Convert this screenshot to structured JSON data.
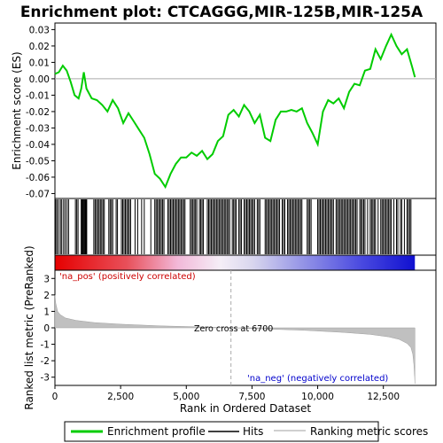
{
  "chart_data": {
    "type": "line",
    "title": "Enrichment plot: CTCAGGG,MIR-125B,MIR-125A",
    "top_panel": {
      "ylabel": "Enrichment score (ES)",
      "ylim": [
        -0.073,
        0.034
      ],
      "yticks": [
        -0.07,
        -0.06,
        -0.05,
        -0.04,
        -0.03,
        -0.02,
        -0.01,
        0.0,
        0.01,
        0.02,
        0.03
      ],
      "ytick_labels": [
        "-0.07",
        "-0.06",
        "-0.05",
        "-0.04",
        "-0.03",
        "-0.02",
        "-0.01",
        "0.00",
        "0.01",
        "0.02",
        "0.03"
      ],
      "series": [
        {
          "name": "Enrichment profile",
          "color": "#00cc00",
          "x": [
            0,
            150,
            300,
            450,
            600,
            750,
            900,
            1000,
            1100,
            1200,
            1400,
            1600,
            1800,
            2000,
            2200,
            2400,
            2600,
            2800,
            3000,
            3200,
            3400,
            3600,
            3800,
            4000,
            4200,
            4400,
            4600,
            4800,
            5000,
            5200,
            5400,
            5600,
            5800,
            6000,
            6200,
            6400,
            6600,
            6800,
            7000,
            7200,
            7400,
            7600,
            7800,
            8000,
            8200,
            8400,
            8600,
            8800,
            9000,
            9200,
            9400,
            9600,
            9800,
            10000,
            10200,
            10400,
            10600,
            10800,
            11000,
            11200,
            11400,
            11600,
            11800,
            12000,
            12200,
            12400,
            12600,
            12800,
            13000,
            13200,
            13400,
            13600,
            13700
          ],
          "y": [
            0.003,
            0.004,
            0.008,
            0.005,
            -0.002,
            -0.01,
            -0.012,
            -0.006,
            0.004,
            -0.006,
            -0.012,
            -0.013,
            -0.016,
            -0.02,
            -0.013,
            -0.018,
            -0.027,
            -0.021,
            -0.026,
            -0.031,
            -0.036,
            -0.046,
            -0.058,
            -0.061,
            -0.066,
            -0.058,
            -0.052,
            -0.048,
            -0.048,
            -0.045,
            -0.047,
            -0.044,
            -0.049,
            -0.046,
            -0.038,
            -0.035,
            -0.022,
            -0.019,
            -0.023,
            -0.016,
            -0.02,
            -0.027,
            -0.022,
            -0.036,
            -0.038,
            -0.025,
            -0.02,
            -0.02,
            -0.019,
            -0.02,
            -0.018,
            -0.027,
            -0.033,
            -0.04,
            -0.02,
            -0.013,
            -0.015,
            -0.012,
            -0.018,
            -0.008,
            -0.003,
            -0.004,
            0.005,
            0.006,
            0.018,
            0.012,
            0.02,
            0.027,
            0.02,
            0.015,
            0.018,
            0.007,
            0.001
          ]
        }
      ]
    },
    "hits": {
      "name": "Hits",
      "positions": [
        30,
        80,
        140,
        210,
        260,
        330,
        390,
        460,
        520,
        780,
        830,
        880,
        1000,
        1030,
        1060,
        1090,
        1120,
        1150,
        1180,
        1210,
        1480,
        1530,
        1580,
        1630,
        1680,
        1730,
        1780,
        1830,
        1880,
        2050,
        2100,
        2150,
        2200,
        2330,
        2380,
        2530,
        2580,
        2630,
        2680,
        2730,
        2780,
        2830,
        2880,
        3050,
        3150,
        3300,
        3400,
        3650,
        3800,
        3850,
        3900,
        3950,
        4000,
        4050,
        4100,
        4150,
        4300,
        4350,
        4400,
        4450,
        4500,
        4550,
        4600,
        4650,
        4700,
        4750,
        4800,
        4850,
        4900,
        4950,
        5150,
        5200,
        5250,
        5300,
        5350,
        5400,
        5500,
        5550,
        5600,
        5650,
        5800,
        5850,
        5900,
        5950,
        6000,
        6050,
        6100,
        6150,
        6200,
        6250,
        6300,
        6350,
        6400,
        6450,
        6500,
        6550,
        6600,
        6650,
        6750,
        6800,
        6850,
        6900,
        7000,
        7050,
        7100,
        7200,
        7250,
        7300,
        7350,
        7400,
        7450,
        7500,
        7550,
        7600,
        7700,
        7750,
        7800,
        8000,
        8050,
        8100,
        8150,
        8200,
        8250,
        8300,
        8350,
        8400,
        8450,
        8500,
        8550,
        8650,
        8700,
        8750,
        8850,
        8900,
        8950,
        9000,
        9050,
        9100,
        9150,
        9200,
        9250,
        9300,
        9350,
        9400,
        9600,
        9650,
        9700,
        9750,
        10000,
        10050,
        10100,
        10150,
        10200,
        10250,
        10300,
        10350,
        10400,
        10450,
        10500,
        10550,
        10600,
        10700,
        10750,
        10800,
        10850,
        10900,
        10950,
        11000,
        11050,
        11100,
        11150,
        11200,
        11250,
        11300,
        11350,
        11400,
        11450,
        11500,
        11600,
        11650,
        11700,
        11750,
        11800,
        11900,
        12000,
        12050,
        12100,
        12150,
        12200,
        12300,
        12400,
        12450,
        12500,
        12550,
        12600,
        12650,
        12700,
        12750,
        12800,
        12900,
        13000,
        13050,
        13150,
        13200,
        13300,
        13400,
        13450,
        13500,
        13550
      ]
    },
    "bottom_panel": {
      "ylabel": "Ranked list metric (PreRanked)",
      "xlabel": "Rank in Ordered Dataset",
      "ylim": [
        -3.5,
        3.5
      ],
      "yticks": [
        3,
        2,
        1,
        0,
        -1,
        -2,
        -3
      ],
      "ytick_labels": [
        "3",
        "2",
        "1",
        "0",
        "-1",
        "-2",
        "-3"
      ],
      "series": [
        {
          "name": "Ranking metric scores",
          "color": "#c0c0c0",
          "x": [
            0,
            30,
            100,
            200,
            400,
            800,
            1500,
            2500,
            4000,
            5500,
            6700,
            8000,
            9500,
            11000,
            12000,
            12700,
            13100,
            13400,
            13550,
            13620,
            13660,
            13690,
            13700
          ],
          "y": [
            2.0,
            1.5,
            1.0,
            0.8,
            0.6,
            0.45,
            0.32,
            0.22,
            0.12,
            0.06,
            0.0,
            -0.07,
            -0.15,
            -0.28,
            -0.4,
            -0.55,
            -0.7,
            -0.95,
            -1.2,
            -1.6,
            -2.2,
            -3.0,
            -3.4
          ]
        }
      ],
      "annotations": {
        "pos_label": "'na_pos' (positively correlated)",
        "neg_label": "'na_neg' (negatively correlated)",
        "zero_cross_label": "Zero cross at 6700",
        "zero_cross": 6700
      }
    },
    "xlim": [
      0,
      14500
    ],
    "xticks": [
      0,
      2500,
      5000,
      7500,
      10000,
      12500
    ],
    "xtick_labels": [
      "0",
      "2,500",
      "5,000",
      "7,500",
      "10,000",
      "12,500"
    ],
    "legend": {
      "placement": "bottom",
      "items": [
        {
          "label": "Enrichment profile",
          "color": "#00cc00"
        },
        {
          "label": "Hits",
          "color": "#000000"
        },
        {
          "label": "Ranking metric scores",
          "color": "#c0c0c0"
        }
      ]
    },
    "colors": {
      "es_line": "#00cc00",
      "hit": "#000000",
      "metric_fill": "#c0c0c0",
      "pos": "#cc0000",
      "neg": "#0000cc",
      "zero_line": "#aaaaaa"
    }
  }
}
